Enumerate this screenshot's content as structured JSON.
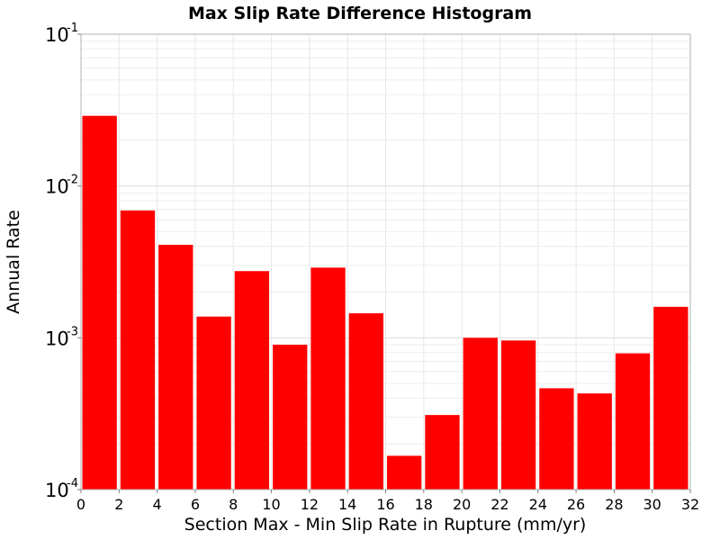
{
  "chart_data": {
    "type": "bar",
    "title": "Max Slip Rate Difference Histogram",
    "xlabel": "Section Max - Min Slip Rate in Rupture (mm/yr)",
    "ylabel": "Annual Rate",
    "y_scale": "log",
    "xlim": [
      0,
      32
    ],
    "ylim": [
      0.0001,
      0.1
    ],
    "bin_width": 2,
    "grid": true,
    "bar_color": "#ff0000",
    "x_ticks": [
      "0",
      "2",
      "4",
      "6",
      "8",
      "10",
      "12",
      "14",
      "16",
      "18",
      "20",
      "22",
      "24",
      "26",
      "28",
      "30",
      "32"
    ],
    "y_ticks": [
      {
        "base": "10",
        "exp": "-1"
      },
      {
        "base": "10",
        "exp": "-2"
      },
      {
        "base": "10",
        "exp": "-3"
      },
      {
        "base": "10",
        "exp": "-4"
      }
    ],
    "bins": [
      {
        "x_start": 0,
        "x_end": 2,
        "value": 0.029
      },
      {
        "x_start": 2,
        "x_end": 4,
        "value": 0.0069
      },
      {
        "x_start": 4,
        "x_end": 6,
        "value": 0.0041
      },
      {
        "x_start": 6,
        "x_end": 8,
        "value": 0.00138
      },
      {
        "x_start": 8,
        "x_end": 10,
        "value": 0.00275
      },
      {
        "x_start": 10,
        "x_end": 12,
        "value": 0.0009
      },
      {
        "x_start": 12,
        "x_end": 14,
        "value": 0.0029
      },
      {
        "x_start": 14,
        "x_end": 16,
        "value": 0.00145
      },
      {
        "x_start": 16,
        "x_end": 18,
        "value": 0.000167
      },
      {
        "x_start": 18,
        "x_end": 20,
        "value": 0.00031
      },
      {
        "x_start": 20,
        "x_end": 22,
        "value": 0.001
      },
      {
        "x_start": 22,
        "x_end": 24,
        "value": 0.00096
      },
      {
        "x_start": 24,
        "x_end": 26,
        "value": 0.000465
      },
      {
        "x_start": 26,
        "x_end": 28,
        "value": 0.00043
      },
      {
        "x_start": 28,
        "x_end": 30,
        "value": 0.00079
      },
      {
        "x_start": 30,
        "x_end": 32,
        "value": 0.0016
      }
    ]
  }
}
